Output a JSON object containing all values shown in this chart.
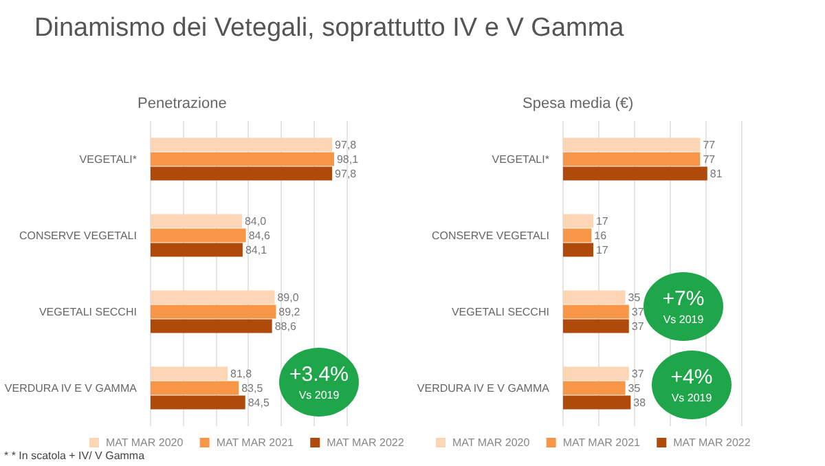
{
  "chart_data": [
    {
      "type": "bar",
      "orientation": "horizontal",
      "title": "Dinamismo dei Vetegali, soprattutto IV e V Gamma",
      "subtitle": "Penetrazione",
      "categories": [
        "VEGETALI*",
        "CONSERVE VEGETALI",
        "VEGETALI SECCHI",
        "VERDURA IV E V GAMMA"
      ],
      "series": [
        {
          "name": "MAT MAR 2020",
          "color": "#fcd5b5",
          "values": [
            97.8,
            84.0,
            89.0,
            81.8
          ],
          "value_labels": [
            "97,8",
            "84,0",
            "89,0",
            "81,8"
          ]
        },
        {
          "name": "MAT MAR 2021",
          "color": "#f79646",
          "values": [
            98.1,
            84.6,
            89.2,
            83.5
          ],
          "value_labels": [
            "98,1",
            "84,6",
            "89,2",
            "83,5"
          ]
        },
        {
          "name": "MAT MAR 2022",
          "color": "#b04a0a",
          "values": [
            97.8,
            84.1,
            88.6,
            84.5
          ],
          "value_labels": [
            "97,8",
            "84,1",
            "88,6",
            "84,5"
          ]
        }
      ],
      "xlim": [
        70,
        100
      ],
      "xticks": [
        {
          "value": 70,
          "label": null
        },
        {
          "value": 75,
          "label": null
        },
        {
          "value": 80,
          "label": null
        },
        {
          "value": 85,
          "label": null
        },
        {
          "value": 90,
          "label": null
        },
        {
          "value": 95,
          "label": null
        },
        {
          "value": 100,
          "label": null
        }
      ],
      "grid": "x",
      "tick_labels": "y",
      "legend": "bottom",
      "annotations": [
        "+3.4%\nVs 2019",
        "* * In scatola + IV/ V Gamma"
      ]
    },
    {
      "type": "bar",
      "orientation": "horizontal",
      "title": "Spesa media (€)",
      "categories": [
        "VEGETALI*",
        "CONSERVE VEGETALI",
        "VEGETALI SECCHI",
        "VERDURA IV E V GAMMA"
      ],
      "series": [
        {
          "name": "MAT MAR 2020",
          "color": "#fcd5b5",
          "values": [
            77,
            17,
            35,
            37
          ]
        },
        {
          "name": "MAT MAR 2021",
          "color": "#f79646",
          "values": [
            77,
            16,
            37,
            35
          ]
        },
        {
          "name": "MAT MAR 2022",
          "color": "#b04a0a",
          "values": [
            81,
            17,
            37,
            38
          ]
        }
      ],
      "xlim": [
        0,
        100
      ],
      "xticks": [
        {
          "value": 0,
          "label": null
        },
        {
          "value": 20,
          "label": null
        },
        {
          "value": 40,
          "label": null
        },
        {
          "value": 60,
          "label": null
        },
        {
          "value": 80,
          "label": null
        },
        {
          "value": 100,
          "label": null
        }
      ],
      "grid": "x",
      "tick_labels": "y",
      "legend": "bottom",
      "data_labels": true,
      "annotations": [
        "+7%\nVs 2019",
        "+4%\nVs 2019"
      ]
    }
  ]
}
